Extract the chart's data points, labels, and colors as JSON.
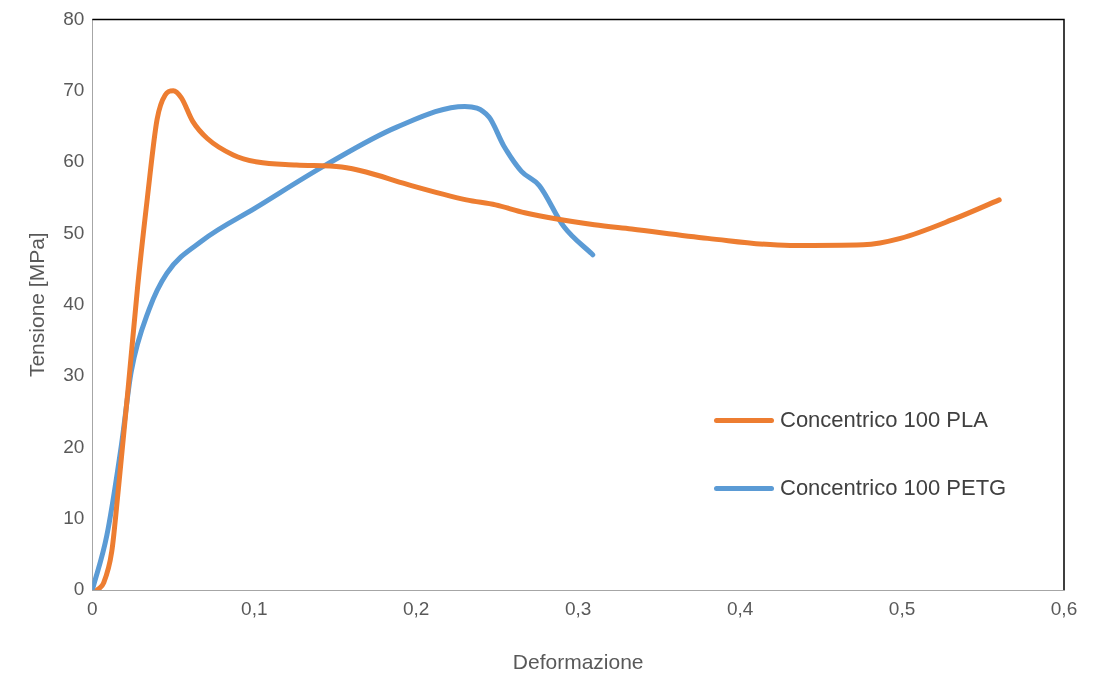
{
  "chart_data": {
    "type": "line",
    "xlabel": "Deformazione",
    "ylabel": "Tensione [MPa]",
    "xlim": [
      0,
      0.6
    ],
    "ylim": [
      0,
      80
    ],
    "xticks": [
      0,
      {
        "value": 0.1,
        "label": "0,1"
      },
      {
        "value": 0.2,
        "label": "0,2"
      },
      {
        "value": 0.3,
        "label": "0,3"
      },
      {
        "value": 0.4,
        "label": "0,4"
      },
      {
        "value": 0.5,
        "label": "0,5"
      },
      {
        "value": 0.6,
        "label": "0,6"
      }
    ],
    "yticks": [
      0,
      10,
      20,
      30,
      40,
      50,
      60,
      70,
      80
    ],
    "grid": false,
    "legend": "right",
    "marker": "none",
    "line_style": "solid",
    "series": [
      {
        "name": "Concentrico 100 PLA",
        "color": "#ed7d31",
        "x": [
          0.003,
          0.007,
          0.012,
          0.016,
          0.022,
          0.028,
          0.034,
          0.04,
          0.045,
          0.05,
          0.055,
          0.062,
          0.071,
          0.087,
          0.102,
          0.126,
          0.154,
          0.169,
          0.194,
          0.231,
          0.249,
          0.267,
          0.31,
          0.333,
          0.38,
          0.431,
          0.476,
          0.499,
          0.533,
          0.56
        ],
        "values": [
          0,
          1,
          5.4,
          14,
          28,
          42.6,
          55,
          66,
          69.4,
          70,
          69,
          65.7,
          63.3,
          61,
          60,
          59.6,
          59.3,
          58.6,
          56.9,
          54.7,
          54,
          52.9,
          51.2,
          50.6,
          49.3,
          48.3,
          48.4,
          49.3,
          52.1,
          54.7
        ]
      },
      {
        "name": "Concentrico 100 PETG",
        "color": "#5b9bd5",
        "x": [
          0,
          0.009,
          0.018,
          0.024,
          0.035,
          0.046,
          0.068,
          0.101,
          0.145,
          0.188,
          0.23,
          0.245,
          0.254,
          0.265,
          0.276,
          0.291,
          0.309
        ],
        "values": [
          0,
          7.7,
          20.4,
          30.6,
          39.3,
          44.4,
          49,
          53.6,
          59.7,
          64.9,
          67.8,
          66.3,
          62.3,
          58.7,
          56.7,
          51,
          47
        ]
      }
    ]
  }
}
